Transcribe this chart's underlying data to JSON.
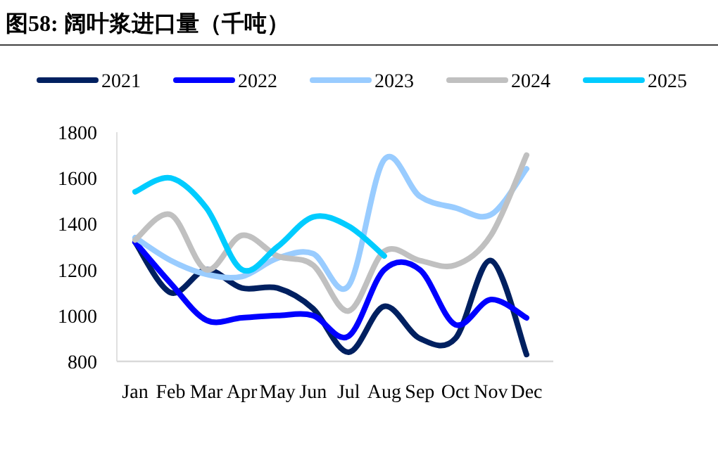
{
  "chart_data": {
    "type": "line",
    "title": "图58:  阔叶浆进口量（千吨）",
    "categories": [
      "Jan",
      "Feb",
      "Mar",
      "Apr",
      "May",
      "Jun",
      "Jul",
      "Aug",
      "Sep",
      "Oct",
      "Nov",
      "Dec"
    ],
    "series": [
      {
        "name": "2021",
        "color": "#002060",
        "values": [
          1320,
          1100,
          1200,
          1120,
          1120,
          1030,
          840,
          1040,
          900,
          900,
          1240,
          830
        ]
      },
      {
        "name": "2022",
        "color": "#0000ff",
        "values": [
          1320,
          1140,
          980,
          990,
          1000,
          1000,
          910,
          1200,
          1200,
          960,
          1070,
          990
        ]
      },
      {
        "name": "2023",
        "color": "#99ccff",
        "values": [
          1340,
          1240,
          1180,
          1170,
          1250,
          1270,
          1130,
          1680,
          1520,
          1470,
          1440,
          1640
        ]
      },
      {
        "name": "2024",
        "color": "#c0c0c0",
        "values": [
          1330,
          1440,
          1200,
          1350,
          1260,
          1220,
          1020,
          1280,
          1240,
          1220,
          1350,
          1700
        ]
      },
      {
        "name": "2025",
        "color": "#00ccff",
        "values": [
          1540,
          1600,
          1470,
          1200,
          1300,
          1430,
          1390,
          1260,
          null,
          null,
          null,
          null
        ]
      }
    ],
    "ylim": [
      800,
      1800
    ],
    "yticks": [
      800,
      1000,
      1200,
      1400,
      1600,
      1800
    ],
    "grid": false,
    "legend": "top",
    "marker": "none",
    "line_style": "solid"
  }
}
